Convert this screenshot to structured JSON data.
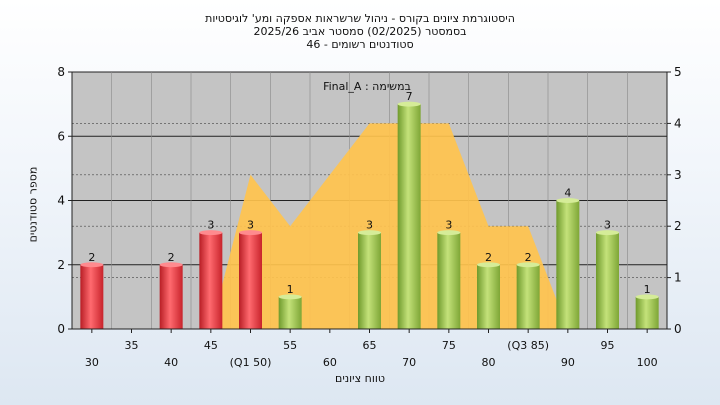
{
  "chart_data": {
    "type": "bar",
    "title_lines": [
      "היסטוגרמת ציונים בקורס - ניהול שרשראות אספקה ומע' לוגיסטיות",
      "בסמסטר  (02/2025)  סמסטר אביב 2025/26",
      "סטודנטים רשומים - 46"
    ],
    "xlabel": "טווח ציונים",
    "ylabel": "מספר סטודנטים",
    "legend_text": "Final_A : במשימה",
    "categories": [
      "30",
      "35",
      "40",
      "45",
      "(Q1 50)",
      "55",
      "60",
      "65",
      "70",
      "75",
      "80",
      "(Q3 85)",
      "90",
      "95",
      "100"
    ],
    "values": [
      2,
      0,
      2,
      3,
      3,
      1,
      0,
      3,
      7,
      3,
      2,
      2,
      4,
      3,
      1
    ],
    "bar_colors": [
      "red",
      "none",
      "red",
      "red",
      "red",
      "green",
      "none",
      "green",
      "green",
      "green",
      "green",
      "green",
      "green",
      "green",
      "green"
    ],
    "ylim": [
      0,
      8
    ],
    "yticks": [
      0,
      2,
      4,
      6,
      8
    ],
    "y2lim": [
      0,
      5
    ],
    "y2ticks": [
      0,
      1,
      2,
      3,
      4,
      5
    ],
    "area_series": {
      "name": "",
      "values": [
        0,
        0,
        0,
        0,
        3,
        2,
        3,
        4,
        4,
        4,
        2,
        2,
        0,
        0,
        0
      ]
    },
    "colors": {
      "red": "#e0323a",
      "green": "#9ac64a",
      "area": "#ffc34d",
      "plot_bg": "#c4c4c4"
    }
  }
}
